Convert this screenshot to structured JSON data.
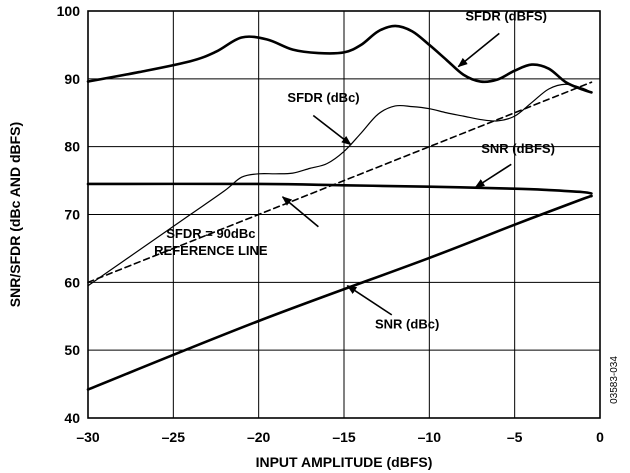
{
  "chart_data": {
    "type": "line",
    "title": "",
    "xlabel": "INPUT AMPLITUDE (dBFS)",
    "ylabel": "SNR/SFDR (dBc AND dBFS)",
    "xlim": [
      -30,
      0
    ],
    "ylim": [
      40,
      100
    ],
    "x_ticks": [
      -30,
      -25,
      -20,
      -15,
      -10,
      -5,
      0
    ],
    "x_tick_labels": [
      "–30",
      "–25",
      "–20",
      "–15",
      "–10",
      "–5",
      "0"
    ],
    "y_ticks": [
      40,
      50,
      60,
      70,
      80,
      90,
      100
    ],
    "y_tick_labels": [
      "40",
      "50",
      "60",
      "70",
      "80",
      "90",
      "100"
    ],
    "grid": true,
    "legend": "none",
    "series": [
      {
        "name": "SFDR (dBFS)",
        "style": "thick",
        "x": [
          -30,
          -27,
          -24,
          -22.5,
          -21,
          -19.5,
          -18,
          -16.5,
          -15,
          -14,
          -13,
          -12,
          -11,
          -10,
          -9,
          -8,
          -7,
          -6,
          -5,
          -4,
          -3,
          -2,
          -1,
          -0.5
        ],
        "y": [
          89.6,
          91,
          92.6,
          94,
          96.1,
          95.8,
          94.3,
          93.8,
          93.9,
          95,
          97,
          97.8,
          97,
          95,
          92.8,
          90.6,
          89.6,
          89.9,
          91.2,
          92.1,
          91.5,
          89.5,
          88.4,
          88
        ]
      },
      {
        "name": "SFDR (dBc)",
        "style": "thin",
        "x": [
          -30,
          -28,
          -26,
          -24,
          -22,
          -21,
          -20,
          -19,
          -18,
          -17,
          -16,
          -15,
          -14,
          -13,
          -12,
          -11,
          -10,
          -9,
          -8,
          -7,
          -6,
          -5,
          -4,
          -3,
          -2,
          -1,
          -0.5
        ],
        "y": [
          59.5,
          63,
          66.5,
          70,
          73.5,
          75.5,
          76,
          76,
          76.1,
          76.8,
          77.5,
          79.3,
          82,
          84.8,
          86,
          85.9,
          85.6,
          85,
          84.5,
          84,
          83.8,
          84.5,
          86.5,
          88.5,
          89.2,
          88.6,
          88
        ]
      },
      {
        "name": "SFDR = 90dBc REFERENCE LINE",
        "style": "dashed",
        "x": [
          -30,
          -0.5
        ],
        "y": [
          60,
          89.5
        ]
      },
      {
        "name": "SNR (dBFS)",
        "style": "thick",
        "x": [
          -30,
          -20,
          -15,
          -10,
          -5,
          -3,
          -1,
          -0.5
        ],
        "y": [
          74.5,
          74.5,
          74.3,
          74.1,
          73.8,
          73.6,
          73.3,
          73.1
        ]
      },
      {
        "name": "SNR (dBc)",
        "style": "thick",
        "x": [
          -30,
          -20,
          -10,
          -5,
          -1,
          -0.5
        ],
        "y": [
          44.2,
          54.3,
          63.6,
          68.5,
          72.3,
          72.7
        ]
      }
    ],
    "annotations": [
      {
        "label_lines": [
          "SFDR (dBFS)"
        ],
        "label_at": [
          -5.5,
          98.6
        ],
        "arrow_from": [
          -5.9,
          96.7
        ],
        "arrow_to": [
          -8.3,
          91.8
        ]
      },
      {
        "label_lines": [
          "SFDR (dBc)"
        ],
        "label_at": [
          -16.2,
          86.6
        ],
        "arrow_from": [
          -16.8,
          84.6
        ],
        "arrow_to": [
          -14.6,
          80.3
        ]
      },
      {
        "label_lines": [
          "SNR (dBFS)"
        ],
        "label_at": [
          -4.8,
          79.1
        ],
        "arrow_from": [
          -5.2,
          77.4
        ],
        "arrow_to": [
          -7.3,
          74.0
        ]
      },
      {
        "label_lines": [
          "SFDR = 90dBc",
          "REFERENCE LINE"
        ],
        "label_at": [
          -22.8,
          66.5
        ],
        "arrow_from": [
          -16.5,
          68.2
        ],
        "arrow_to": [
          -18.6,
          72.6
        ]
      },
      {
        "label_lines": [
          "SNR (dBc)"
        ],
        "label_at": [
          -11.3,
          53.2
        ],
        "arrow_from": [
          -12.2,
          55.2
        ],
        "arrow_to": [
          -14.8,
          59.5
        ]
      }
    ],
    "figure_id": "03583-034"
  }
}
